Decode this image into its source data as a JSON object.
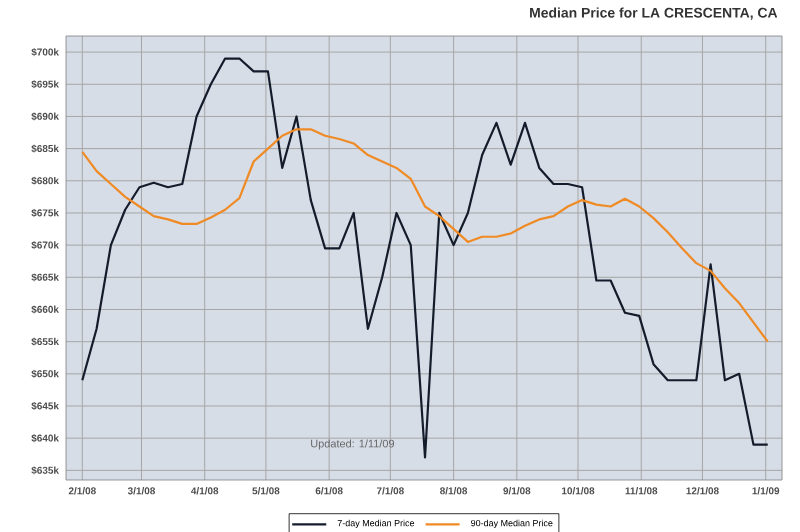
{
  "chart_data": {
    "type": "line",
    "title": "Median Price for LA CRESCENTA, CA",
    "x": [
      "2008-02-01",
      "2008-02-08",
      "2008-02-15",
      "2008-02-22",
      "2008-02-29",
      "2008-03-07",
      "2008-03-14",
      "2008-03-21",
      "2008-03-28",
      "2008-04-04",
      "2008-04-11",
      "2008-04-18",
      "2008-04-25",
      "2008-05-02",
      "2008-05-09",
      "2008-05-16",
      "2008-05-23",
      "2008-05-30",
      "2008-06-06",
      "2008-06-13",
      "2008-06-20",
      "2008-06-27",
      "2008-07-04",
      "2008-07-11",
      "2008-07-18",
      "2008-07-25",
      "2008-08-01",
      "2008-08-08",
      "2008-08-15",
      "2008-08-22",
      "2008-08-29",
      "2008-09-05",
      "2008-09-12",
      "2008-09-19",
      "2008-09-26",
      "2008-10-03",
      "2008-10-10",
      "2008-10-17",
      "2008-10-24",
      "2008-10-31",
      "2008-11-07",
      "2008-11-14",
      "2008-11-21",
      "2008-11-28",
      "2008-12-05",
      "2008-12-12",
      "2008-12-19",
      "2008-12-26",
      "2009-01-02"
    ],
    "series": [
      {
        "name": "7-day Median Price",
        "color": "#141c2c",
        "values": [
          649,
          657,
          670,
          675.5,
          679,
          679.7,
          679,
          679.5,
          690,
          695,
          699,
          699,
          697,
          697,
          682,
          690,
          677,
          669.5,
          669.5,
          675,
          657,
          665,
          675,
          670,
          637,
          675,
          670,
          675,
          684,
          689,
          682.5,
          689,
          682,
          679.5,
          679.5,
          679,
          664.5,
          664.5,
          659.5,
          659,
          651.5,
          649,
          649,
          649,
          667,
          649,
          650,
          639,
          639
        ]
      },
      {
        "name": "90-day Median Price",
        "color": "#f08a24",
        "values": [
          684.5,
          681.5,
          679.5,
          677.5,
          676,
          674.5,
          674,
          673.3,
          673.3,
          674.3,
          675.5,
          677.3,
          683,
          685,
          687,
          688,
          688,
          687,
          686.5,
          685.8,
          684,
          683,
          682,
          680.3,
          676,
          674.5,
          672.5,
          670.5,
          671.3,
          671.3,
          671.8,
          673,
          674,
          674.5,
          676,
          677,
          676.3,
          676,
          677.2,
          676,
          674.2,
          672,
          669.5,
          667.2,
          666,
          663.3,
          661,
          658,
          655
        ]
      }
    ],
    "xlim": [
      "2008-01-24",
      "2009-01-09"
    ],
    "xticks": [
      {
        "value": "2008-02-01",
        "label": "2/1/08"
      },
      {
        "value": "2008-03-01",
        "label": "3/1/08"
      },
      {
        "value": "2008-04-01",
        "label": "4/1/08"
      },
      {
        "value": "2008-05-01",
        "label": "5/1/08"
      },
      {
        "value": "2008-06-01",
        "label": "6/1/08"
      },
      {
        "value": "2008-07-01",
        "label": "7/1/08"
      },
      {
        "value": "2008-08-01",
        "label": "8/1/08"
      },
      {
        "value": "2008-09-01",
        "label": "9/1/08"
      },
      {
        "value": "2008-10-01",
        "label": "10/1/08"
      },
      {
        "value": "2008-11-01",
        "label": "11/1/08"
      },
      {
        "value": "2008-12-01",
        "label": "12/1/08"
      },
      {
        "value": "2009-01-01",
        "label": "1/1/09"
      }
    ],
    "ylim": [
      633.5,
      702.5
    ],
    "yticks": [
      {
        "value": 635,
        "label": "$635k"
      },
      {
        "value": 640,
        "label": "$640k"
      },
      {
        "value": 645,
        "label": "$645k"
      },
      {
        "value": 650,
        "label": "$650k"
      },
      {
        "value": 655,
        "label": "$655k"
      },
      {
        "value": 660,
        "label": "$660k"
      },
      {
        "value": 665,
        "label": "$665k"
      },
      {
        "value": 670,
        "label": "$670k"
      },
      {
        "value": 675,
        "label": "$675k"
      },
      {
        "value": 680,
        "label": "$680k"
      },
      {
        "value": 685,
        "label": "$685k"
      },
      {
        "value": 690,
        "label": "$690k"
      },
      {
        "value": 695,
        "label": "$695k"
      },
      {
        "value": 700,
        "label": "$700k"
      }
    ],
    "annotations": [
      "Updated: 1/11/09"
    ],
    "grid": true,
    "legend": "bottom",
    "marker": "none",
    "line_style": "solid"
  }
}
